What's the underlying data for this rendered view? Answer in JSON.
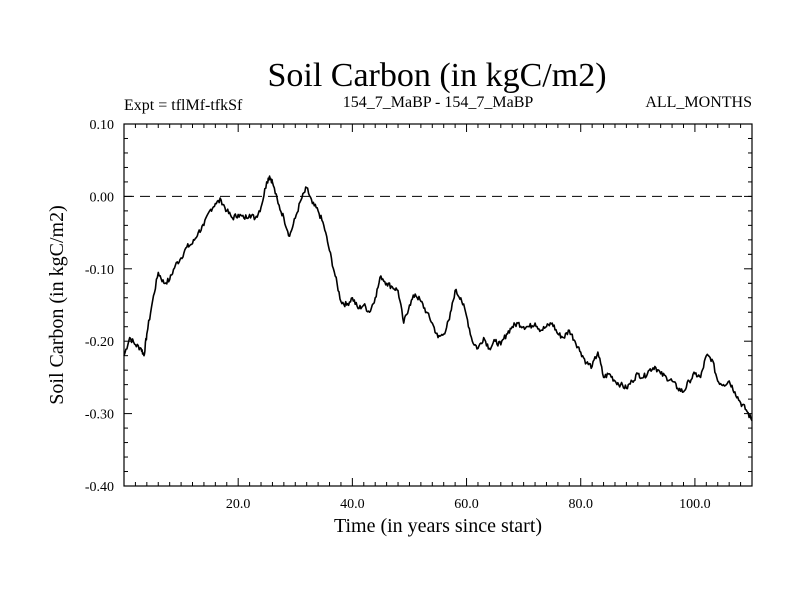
{
  "chart_data": {
    "type": "line",
    "title": "Soil Carbon (in kgC/m2)",
    "subtitle_left": "Expt = tflMf-tfkSf",
    "subtitle_center": "154_7_MaBP - 154_7_MaBP",
    "subtitle_right": "ALL_MONTHS",
    "xlabel": "Time (in years since start)",
    "ylabel": "Soil Carbon (in kgC/m2)",
    "xlim": [
      0,
      110
    ],
    "ylim": [
      -0.4,
      0.1
    ],
    "xticks": [
      20,
      40,
      60,
      80,
      100
    ],
    "xtick_labels": [
      "20.0",
      "40.0",
      "60.0",
      "80.0",
      "100.0"
    ],
    "yticks": [
      0.1,
      0.0,
      -0.1,
      -0.2,
      -0.3,
      -0.4
    ],
    "ytick_labels": [
      "0.10",
      "0.00",
      "-0.10",
      "-0.20",
      "-0.30",
      "-0.40"
    ],
    "reference_line": 0.0,
    "series": [
      {
        "name": "Soil Carbon",
        "x": [
          0,
          1,
          2,
          3,
          3.5,
          4,
          5,
          6,
          7,
          8,
          9,
          10,
          11,
          12,
          13,
          14,
          15,
          16,
          17,
          18,
          19,
          20,
          21,
          22,
          23,
          24,
          25,
          25.5,
          26,
          27,
          28,
          29,
          30,
          31,
          32,
          33,
          34,
          35,
          36,
          37,
          38,
          39,
          40,
          41,
          42,
          43,
          44,
          45,
          46,
          47,
          48,
          49,
          50,
          51,
          52,
          53,
          54,
          55,
          56,
          57,
          58,
          59,
          60,
          61,
          62,
          63,
          64,
          65,
          66,
          67,
          68,
          69,
          70,
          71,
          72,
          73,
          74,
          75,
          76,
          77,
          78,
          79,
          80,
          81,
          82,
          83,
          84,
          85,
          86,
          87,
          88,
          89,
          90,
          91,
          92,
          93,
          94,
          95,
          96,
          97,
          98,
          99,
          100,
          101,
          102,
          103,
          104,
          105,
          106,
          107,
          108,
          109,
          110
        ],
        "values": [
          -0.22,
          -0.195,
          -0.205,
          -0.21,
          -0.22,
          -0.19,
          -0.145,
          -0.105,
          -0.12,
          -0.115,
          -0.095,
          -0.085,
          -0.07,
          -0.065,
          -0.05,
          -0.04,
          -0.02,
          -0.01,
          -0.005,
          -0.02,
          -0.03,
          -0.025,
          -0.03,
          -0.025,
          -0.03,
          -0.015,
          0.02,
          0.028,
          0.02,
          -0.01,
          -0.03,
          -0.055,
          -0.03,
          -0.005,
          0.012,
          -0.01,
          -0.02,
          -0.04,
          -0.075,
          -0.11,
          -0.145,
          -0.15,
          -0.14,
          -0.155,
          -0.15,
          -0.16,
          -0.14,
          -0.11,
          -0.12,
          -0.125,
          -0.13,
          -0.175,
          -0.15,
          -0.135,
          -0.145,
          -0.16,
          -0.175,
          -0.195,
          -0.19,
          -0.17,
          -0.13,
          -0.14,
          -0.165,
          -0.2,
          -0.21,
          -0.195,
          -0.21,
          -0.2,
          -0.205,
          -0.19,
          -0.18,
          -0.175,
          -0.18,
          -0.18,
          -0.175,
          -0.185,
          -0.18,
          -0.175,
          -0.19,
          -0.195,
          -0.185,
          -0.2,
          -0.215,
          -0.23,
          -0.235,
          -0.215,
          -0.25,
          -0.245,
          -0.255,
          -0.26,
          -0.265,
          -0.255,
          -0.245,
          -0.25,
          -0.24,
          -0.235,
          -0.245,
          -0.25,
          -0.255,
          -0.265,
          -0.27,
          -0.255,
          -0.245,
          -0.25,
          -0.22,
          -0.225,
          -0.255,
          -0.26,
          -0.255,
          -0.27,
          -0.285,
          -0.295,
          -0.31
        ]
      }
    ]
  }
}
